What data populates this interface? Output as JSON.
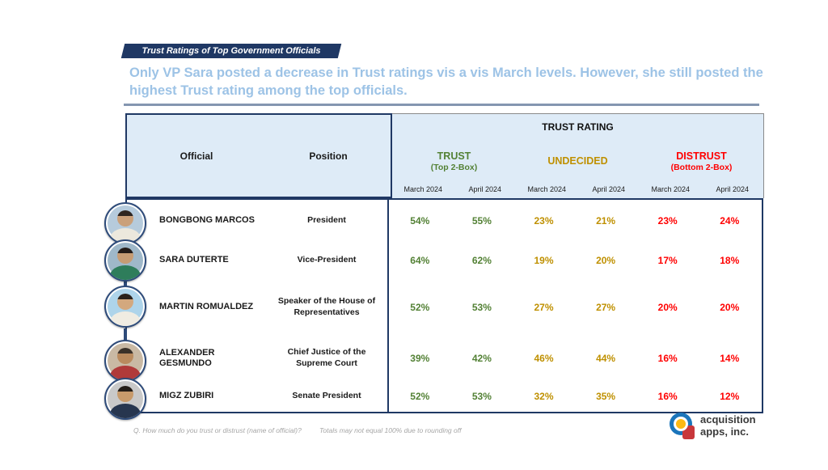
{
  "badge": {
    "label": "Trust Ratings of Top Government Officials"
  },
  "subtitle": "Only VP Sara posted a decrease in Trust ratings vis a vis March levels.  However, she still posted the highest Trust rating among the top officials.",
  "table": {
    "col_official": "Official",
    "col_position": "Position",
    "trust_rating_header": "TRUST RATING",
    "groups": [
      {
        "label": "TRUST",
        "sub": "(Top 2-Box)",
        "color": "#538135"
      },
      {
        "label": "UNDECIDED",
        "sub": "",
        "color": "#BF9000"
      },
      {
        "label": "DISTRUST",
        "sub": "(Bottom 2-Box)",
        "color": "#FF0000"
      }
    ],
    "date_cols": [
      "March 2024",
      "April 2024",
      "March 2024",
      "April 2024",
      "March 2024",
      "April 2024"
    ],
    "rows": [
      {
        "official": "BONGBONG MARCOS",
        "position": "President",
        "values": [
          "54%",
          "55%",
          "23%",
          "21%",
          "23%",
          "24%"
        ]
      },
      {
        "official": "SARA DUTERTE",
        "position": "Vice-President",
        "values": [
          "64%",
          "62%",
          "19%",
          "20%",
          "17%",
          "18%"
        ]
      },
      {
        "official": "MARTIN ROMUALDEZ",
        "position": "Speaker of the House of Representatives",
        "values": [
          "52%",
          "53%",
          "27%",
          "27%",
          "20%",
          "20%"
        ]
      },
      {
        "official": "ALEXANDER GESMUNDO",
        "position": "Chief Justice of the Supreme Court",
        "values": [
          "39%",
          "42%",
          "46%",
          "44%",
          "16%",
          "14%"
        ]
      },
      {
        "official": "MIGZ ZUBIRI",
        "position": "Senate President",
        "values": [
          "52%",
          "53%",
          "32%",
          "35%",
          "16%",
          "12%"
        ]
      }
    ]
  },
  "footer": {
    "question": "Q. How much do you trust or distrust (name of official)?",
    "note": "Totals may not equal 100% due to rounding off"
  },
  "logo": {
    "line1": "acquisition",
    "line2": "apps, inc."
  },
  "colors": {
    "navy": "#1F3864",
    "header_bg": "#DEEBF7",
    "subtitle_blue": "#9DC3E6",
    "trust_green": "#538135",
    "undecided_gold": "#BF9000",
    "distrust_red": "#FF0000"
  },
  "chart_data": {
    "type": "table",
    "title": "TRUST RATING",
    "columns": [
      "Official",
      "Position",
      "Trust (Top 2-Box) March 2024",
      "Trust (Top 2-Box) April 2024",
      "Undecided March 2024",
      "Undecided April 2024",
      "Distrust (Bottom 2-Box) March 2024",
      "Distrust (Bottom 2-Box) April 2024"
    ],
    "rows": [
      [
        "BONGBONG MARCOS",
        "President",
        54,
        55,
        23,
        21,
        23,
        24
      ],
      [
        "SARA DUTERTE",
        "Vice-President",
        64,
        62,
        19,
        20,
        17,
        18
      ],
      [
        "MARTIN ROMUALDEZ",
        "Speaker of the House of Representatives",
        52,
        53,
        27,
        27,
        20,
        20
      ],
      [
        "ALEXANDER GESMUNDO",
        "Chief Justice of the Supreme Court",
        39,
        42,
        46,
        44,
        16,
        14
      ],
      [
        "MIGZ ZUBIRI",
        "Senate President",
        52,
        53,
        32,
        35,
        16,
        12
      ]
    ],
    "units": "percent",
    "note": "Totals may not equal 100% due to rounding off"
  }
}
